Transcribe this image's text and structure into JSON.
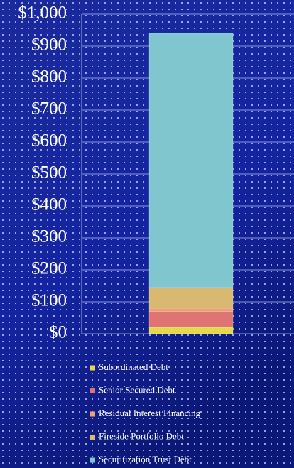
{
  "chart_data": {
    "type": "stacked_bar",
    "categories": [
      null
    ],
    "series": [
      {
        "name": "Subordinated Debt",
        "color": "#e6d84c",
        "values": [
          20
        ]
      },
      {
        "name": "Senior Secured Debt",
        "color": "#e07474",
        "values": [
          50
        ]
      },
      {
        "name": "Residual Interest Financing",
        "color": "#e9a274",
        "values": [
          10
        ]
      },
      {
        "name": "Fireside Portfolio Debt",
        "color": "#d9b872",
        "values": [
          65
        ]
      },
      {
        "name": "Securitization Trust Debt",
        "color": "#80c6ce",
        "values": [
          795
        ]
      }
    ],
    "ylim": [
      0,
      1000
    ],
    "yticks": [
      {
        "value": 0,
        "label": "$0"
      },
      {
        "value": 100,
        "label": "$100"
      },
      {
        "value": 200,
        "label": "$200"
      },
      {
        "value": 300,
        "label": "$300"
      },
      {
        "value": 400,
        "label": "$400"
      },
      {
        "value": 500,
        "label": "$500"
      },
      {
        "value": 600,
        "label": "$600"
      },
      {
        "value": 700,
        "label": "$700"
      },
      {
        "value": 800,
        "label": "$800"
      },
      {
        "value": 900,
        "label": "$900"
      },
      {
        "value": 1000,
        "label": "$1,000"
      }
    ],
    "grid": true
  }
}
